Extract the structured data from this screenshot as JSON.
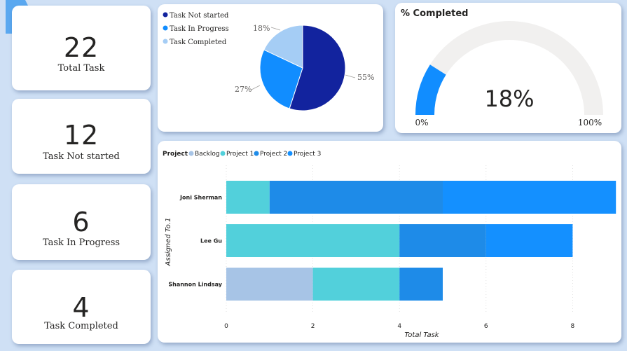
{
  "kpis": [
    {
      "value": "22",
      "label": "Total Task"
    },
    {
      "value": "12",
      "label": "Task Not started"
    },
    {
      "value": "6",
      "label": "Task In Progress"
    },
    {
      "value": "4",
      "label": "Task Completed"
    }
  ],
  "pie": {
    "legend": [
      "Task Not started",
      "Task In Progress",
      "Task Completed"
    ],
    "values": [
      55,
      27,
      18
    ],
    "labels": [
      "55%",
      "27%",
      "18%"
    ],
    "colors": [
      "#12239e",
      "#118dff",
      "#a5cdf5"
    ]
  },
  "gauge": {
    "title": "% Completed",
    "value_label": "18%",
    "value": 0.18,
    "min_label": "0%",
    "max_label": "100%",
    "fill_color": "#118dff",
    "track_color": "#f1f0ef"
  },
  "bar": {
    "legend_title": "Project",
    "legend": [
      {
        "name": "Backlog",
        "color": "#a7c4e6"
      },
      {
        "name": "Project 1",
        "color": "#52d0db"
      },
      {
        "name": "Project 2",
        "color": "#1e8be8"
      },
      {
        "name": "Project 3",
        "color": "#1490ff"
      }
    ],
    "ylabel": "Assigned To.1",
    "xlabel": "Total Task"
  },
  "chart_data": [
    {
      "type": "pie",
      "categories": [
        "Task Not started",
        "Task In Progress",
        "Task Completed"
      ],
      "values": [
        55,
        27,
        18
      ],
      "unit": "%"
    },
    {
      "type": "bar",
      "orientation": "horizontal",
      "stacked": true,
      "categories": [
        "Joni Sherman",
        "Lee Gu",
        "Shannon Lindsay"
      ],
      "series": [
        {
          "name": "Backlog",
          "values": [
            0,
            0,
            2
          ]
        },
        {
          "name": "Project 1",
          "values": [
            1,
            4,
            2
          ]
        },
        {
          "name": "Project 2",
          "values": [
            4,
            2,
            1
          ]
        },
        {
          "name": "Project 3",
          "values": [
            4,
            2,
            0
          ]
        }
      ],
      "xticks": [
        "0",
        "2",
        "4",
        "6",
        "8"
      ],
      "xlim": [
        0,
        9
      ],
      "xlabel": "Total Task",
      "ylabel": "Assigned To.1",
      "legend_title": "Project",
      "legend_position": "top-left",
      "grid": true
    }
  ]
}
